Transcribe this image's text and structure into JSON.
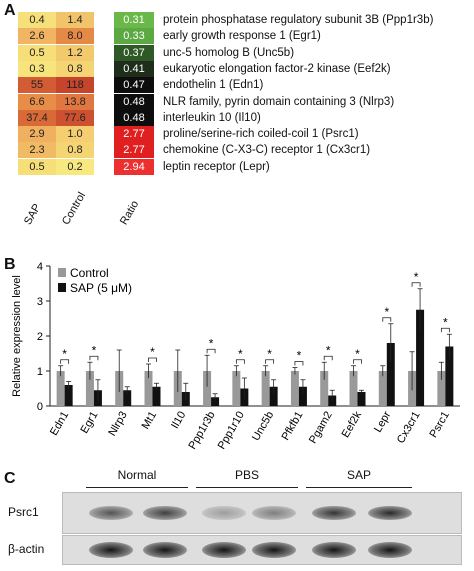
{
  "panel_a": {
    "letter": "A",
    "columns": [
      "SAP",
      "Control",
      "Ratio"
    ],
    "rows": [
      {
        "sap": "0.4",
        "control": "1.4",
        "ratio": "0.31",
        "gene": "protein phosphatase regulatory subunit 3B (Ppp1r3b)",
        "sap_color": "#f6e07a",
        "control_color": "#f1c36a",
        "ratio_color": "#6bb84a"
      },
      {
        "sap": "2.6",
        "control": "8.0",
        "ratio": "0.33",
        "gene": "early growth response 1 (Egr1)",
        "sap_color": "#f0b463",
        "control_color": "#e58a46",
        "ratio_color": "#5ca843"
      },
      {
        "sap": "0.5",
        "control": "1.2",
        "ratio": "0.37",
        "gene": "unc-5 homolog B (Unc5b)",
        "sap_color": "#f6de78",
        "control_color": "#f3c96d",
        "ratio_color": "#2f5a27"
      },
      {
        "sap": "0.3",
        "control": "0.8",
        "ratio": "0.41",
        "gene": "eukaryotic elongation factor-2 kinase (Eef2k)",
        "sap_color": "#f7e47d",
        "control_color": "#f5d474",
        "ratio_color": "#1e2e1a"
      },
      {
        "sap": "55",
        "control": "118",
        "ratio": "0.47",
        "gene": "endothelin 1 (Edn1)",
        "sap_color": "#d35c34",
        "control_color": "#c5442b",
        "ratio_color": "#0d0d0d"
      },
      {
        "sap": "6.6",
        "control": "13.8",
        "ratio": "0.48",
        "gene": "NLR family, pyrin domain containing 3 (Nlrp3)",
        "sap_color": "#e78d48",
        "control_color": "#e07640",
        "ratio_color": "#0d0d0d"
      },
      {
        "sap": "37.4",
        "control": "77.6",
        "ratio": "0.48",
        "gene": "interleukin 10 (Il10)",
        "sap_color": "#d86a38",
        "control_color": "#cd5030",
        "ratio_color": "#0d0d0d"
      },
      {
        "sap": "2.9",
        "control": "1.0",
        "ratio": "2.77",
        "gene": "proline/serine-rich coiled-coil 1 (Psrc1)",
        "sap_color": "#f0b060",
        "control_color": "#f4ce71",
        "ratio_color": "#e02020"
      },
      {
        "sap": "2.3",
        "control": "0.8",
        "ratio": "2.77",
        "gene": "chemokine (C-X3-C) receptor 1 (Cx3cr1)",
        "sap_color": "#f1bb66",
        "control_color": "#f5d474",
        "ratio_color": "#e02020"
      },
      {
        "sap": "0.5",
        "control": "0.2",
        "ratio": "2.94",
        "gene": "leptin receptor (Lepr)",
        "sap_color": "#f6de78",
        "control_color": "#f8e880",
        "ratio_color": "#ec3030"
      }
    ]
  },
  "panel_b": {
    "letter": "B",
    "chart_data": {
      "type": "bar",
      "ylabel": "Relative expression level",
      "ylim": [
        0,
        4
      ],
      "yticks": [
        "0",
        "1",
        "2",
        "3",
        "4"
      ],
      "categories": [
        "Edn1",
        "Egr1",
        "Nlrp3",
        "Mt1",
        "Il10",
        "Ppp1r3b",
        "Ppp1r10",
        "Unc5b",
        "Pfkfb1",
        "Pgam2",
        "Eef2k",
        "Lepr",
        "Cx3cr1",
        "Psrc1"
      ],
      "series": [
        {
          "name": "Control",
          "color": "#999999",
          "values": [
            1.0,
            1.0,
            1.0,
            1.0,
            1.0,
            1.0,
            1.0,
            1.0,
            1.0,
            1.0,
            1.0,
            1.0,
            1.0,
            1.0
          ],
          "errors": [
            0.15,
            0.25,
            0.6,
            0.2,
            0.6,
            0.45,
            0.15,
            0.15,
            0.1,
            0.25,
            0.15,
            0.15,
            0.55,
            0.25
          ]
        },
        {
          "name": "SAP (5 μM)",
          "color": "#111111",
          "values": [
            0.6,
            0.45,
            0.45,
            0.55,
            0.4,
            0.25,
            0.5,
            0.55,
            0.55,
            0.3,
            0.4,
            1.8,
            2.75,
            1.7
          ],
          "errors": [
            0.1,
            0.3,
            0.1,
            0.1,
            0.25,
            0.1,
            0.3,
            0.2,
            0.2,
            0.15,
            0.05,
            0.55,
            0.6,
            0.35
          ]
        }
      ],
      "significance": [
        "*",
        "*",
        "",
        "*",
        "",
        "*",
        "*",
        "*",
        "*",
        "*",
        "*",
        "*",
        "*",
        "*"
      ],
      "legend_position": "top-left"
    }
  },
  "panel_c": {
    "letter": "C",
    "groups": [
      "Normal",
      "PBS",
      "SAP"
    ],
    "rows": [
      {
        "label": "Psrc1",
        "band_intensity": [
          0.65,
          0.75,
          0.3,
          0.45,
          0.8,
          0.85
        ]
      },
      {
        "label": "β-actin",
        "band_intensity": [
          0.95,
          0.95,
          0.95,
          0.95,
          0.95,
          0.95
        ]
      }
    ]
  }
}
